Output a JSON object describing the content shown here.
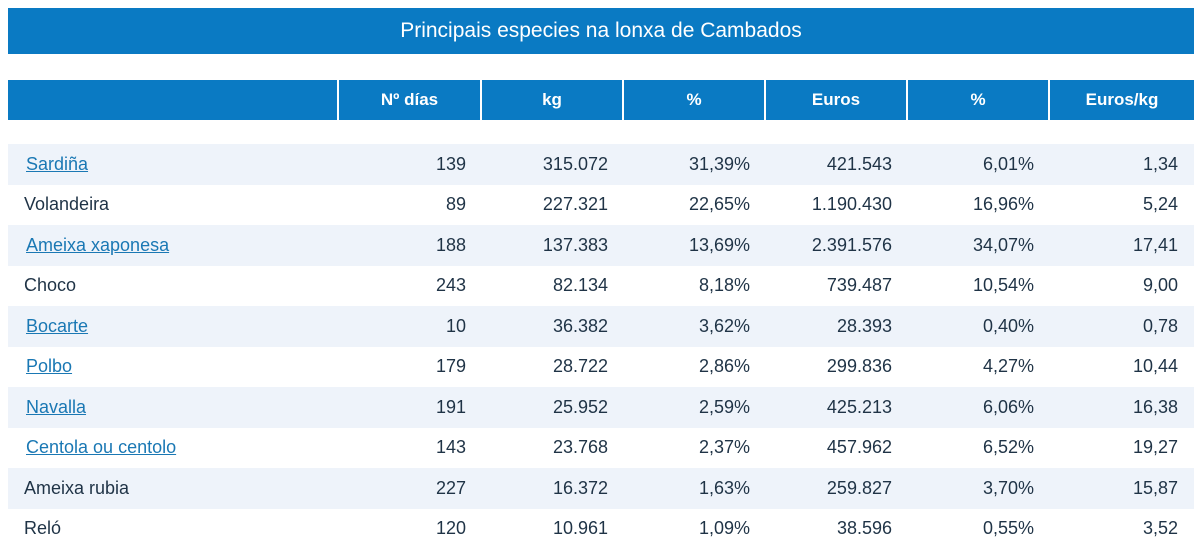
{
  "title": "Principais especies na lonxa de Cambados",
  "headers": [
    "",
    "Nº días",
    "kg",
    "%",
    "Euros",
    "%",
    "Euros/kg"
  ],
  "rows": [
    {
      "name": "Sardiña",
      "link": true,
      "dias": "139",
      "kg": "315.072",
      "pct_kg": "31,39%",
      "euros": "421.543",
      "pct_euros": "6,01%",
      "euros_kg": "1,34"
    },
    {
      "name": "Volandeira",
      "link": false,
      "dias": "89",
      "kg": "227.321",
      "pct_kg": "22,65%",
      "euros": "1.190.430",
      "pct_euros": "16,96%",
      "euros_kg": "5,24"
    },
    {
      "name": "Ameixa xaponesa",
      "link": true,
      "dias": "188",
      "kg": "137.383",
      "pct_kg": "13,69%",
      "euros": "2.391.576",
      "pct_euros": "34,07%",
      "euros_kg": "17,41"
    },
    {
      "name": "Choco",
      "link": false,
      "dias": "243",
      "kg": "82.134",
      "pct_kg": "8,18%",
      "euros": "739.487",
      "pct_euros": "10,54%",
      "euros_kg": "9,00"
    },
    {
      "name": "Bocarte",
      "link": true,
      "dias": "10",
      "kg": "36.382",
      "pct_kg": "3,62%",
      "euros": "28.393",
      "pct_euros": "0,40%",
      "euros_kg": "0,78"
    },
    {
      "name": "Polbo",
      "link": true,
      "dias": "179",
      "kg": "28.722",
      "pct_kg": "2,86%",
      "euros": "299.836",
      "pct_euros": "4,27%",
      "euros_kg": "10,44"
    },
    {
      "name": "Navalla",
      "link": true,
      "dias": "191",
      "kg": "25.952",
      "pct_kg": "2,59%",
      "euros": "425.213",
      "pct_euros": "6,06%",
      "euros_kg": "16,38"
    },
    {
      "name": "Centola ou centolo",
      "link": true,
      "dias": "143",
      "kg": "23.768",
      "pct_kg": "2,37%",
      "euros": "457.962",
      "pct_euros": "6,52%",
      "euros_kg": "19,27"
    },
    {
      "name": "Ameixa rubia",
      "link": false,
      "dias": "227",
      "kg": "16.372",
      "pct_kg": "1,63%",
      "euros": "259.827",
      "pct_euros": "3,70%",
      "euros_kg": "15,87"
    },
    {
      "name": "Reló",
      "link": false,
      "dias": "120",
      "kg": "10.961",
      "pct_kg": "1,09%",
      "euros": "38.596",
      "pct_euros": "0,55%",
      "euros_kg": "3,52"
    }
  ],
  "colors": {
    "header_bg": "#0a7ac3",
    "stripe": "#eef3fa",
    "link": "#1a78b4",
    "text": "#1f3346"
  }
}
